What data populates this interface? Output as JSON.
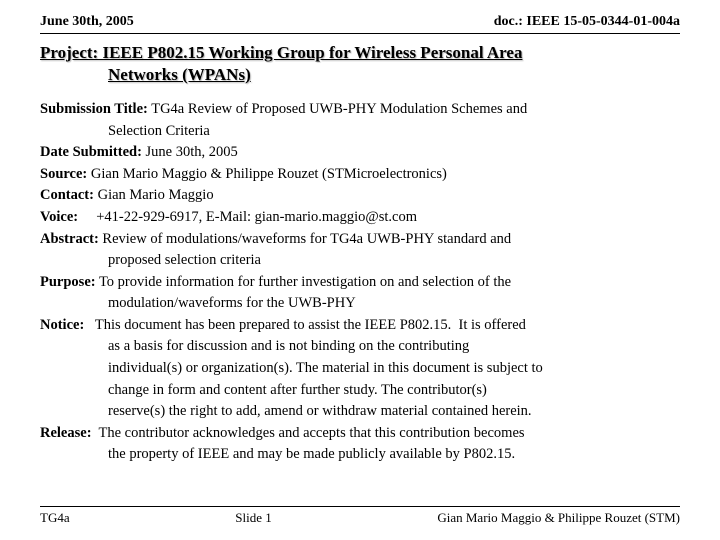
{
  "header": {
    "date": "June 30th, 2005",
    "doc": "doc.: IEEE 15-05-0344-01-004a"
  },
  "project": {
    "line1": "Project: IEEE P802.15 Working Group for Wireless Personal Area",
    "line2": "Networks (WPANs)"
  },
  "fields": {
    "submission_label": "Submission Title:",
    "submission_l1": "  TG4a Review of Proposed UWB-PHY Modulation Schemes and",
    "submission_l2": "Selection Criteria",
    "date_label": "Date Submitted:",
    "date_value": " June 30th, 2005",
    "source_label": "Source:",
    "source_value": " Gian Mario Maggio & Philippe Rouzet (STMicroelectronics)",
    "contact_label": "Contact:",
    "contact_value": " Gian Mario Maggio",
    "voice_label": "Voice:",
    "voice_value": "     +41-22-929-6917, E-Mail: gian-mario.maggio@st.com",
    "abstract_label": "Abstract:",
    "abstract_l1": " Review of modulations/waveforms for TG4a UWB-PHY standard and",
    "abstract_l2": "proposed selection criteria",
    "purpose_label": "Purpose:",
    "purpose_l1": " To provide information for further investigation on and selection of the",
    "purpose_l2": "modulation/waveforms for the UWB-PHY",
    "notice_label": "Notice:",
    "notice_l1": "   This document has been prepared to assist the IEEE P802.15.  It is offered",
    "notice_l2": "as a basis for discussion and is not binding on the contributing",
    "notice_l3": "individual(s) or organization(s). The material in this document is subject to",
    "notice_l4": "change in form and content after further study. The contributor(s)",
    "notice_l5": "reserve(s) the right to add, amend or withdraw material contained herein.",
    "release_label": "Release:",
    "release_l1": "  The contributor acknowledges and accepts that this contribution becomes",
    "release_l2": "the property of IEEE and may be made publicly available by P802.15."
  },
  "footer": {
    "left": "TG4a",
    "center": "Slide 1",
    "right": "Gian Mario Maggio & Philippe Rouzet (STM)"
  }
}
